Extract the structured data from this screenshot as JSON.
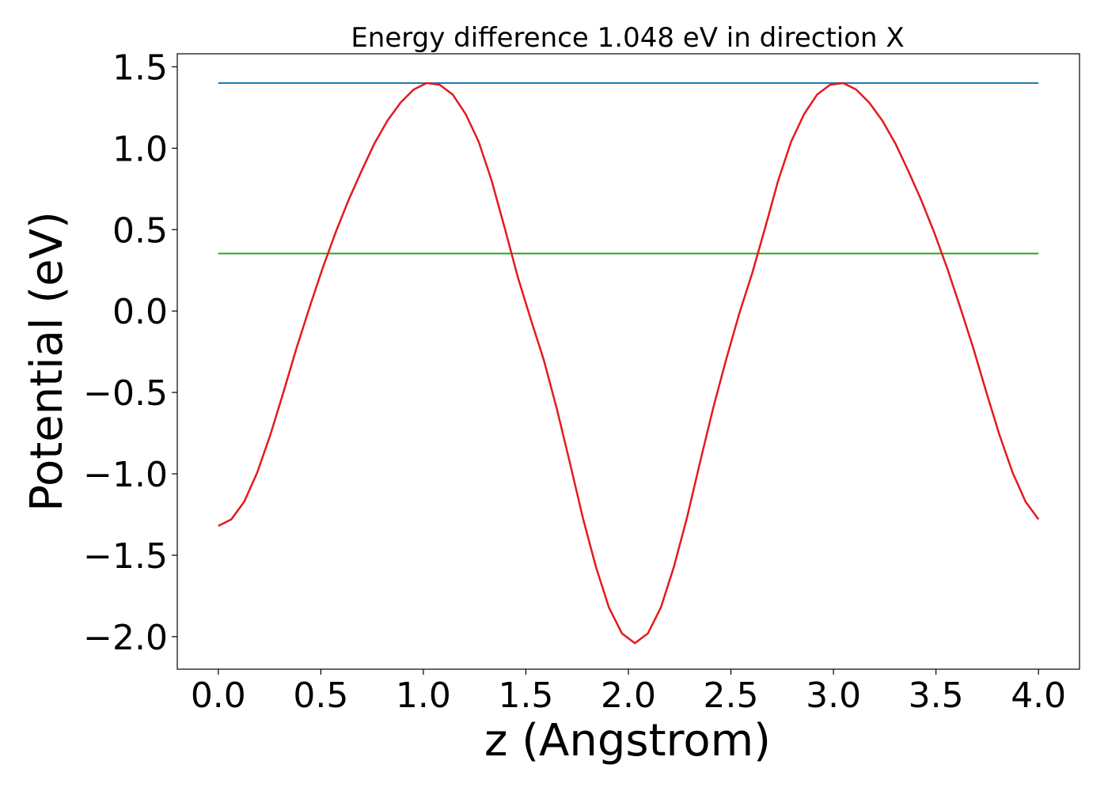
{
  "chart_data": {
    "type": "line",
    "title": "Energy difference 1.048 eV in direction X",
    "xlabel": "z (Angstrom)",
    "ylabel": "Potential (eV)",
    "xlim": [
      -0.2,
      4.2
    ],
    "ylim": [
      -2.2,
      1.58
    ],
    "xticks": [
      0.0,
      0.5,
      1.0,
      1.5,
      2.0,
      2.5,
      3.0,
      3.5,
      4.0
    ],
    "xtick_labels": [
      "0.0",
      "0.5",
      "1.0",
      "1.5",
      "2.0",
      "2.5",
      "3.0",
      "3.5",
      "4.0"
    ],
    "yticks": [
      -2.0,
      -1.5,
      -1.0,
      -0.5,
      0.0,
      0.5,
      1.0,
      1.5
    ],
    "ytick_labels": [
      "−2.0",
      "−1.5",
      "−1.0",
      "−0.5",
      "0.0",
      "0.5",
      "1.0",
      "1.5"
    ],
    "grid": false,
    "series": [
      {
        "color": "#1f77b4",
        "x": [
          0.0,
          4.0
        ],
        "y": [
          1.4,
          1.4
        ]
      },
      {
        "color": "#2ca02c",
        "x": [
          0.0,
          4.0
        ],
        "y": [
          0.353,
          0.353
        ]
      },
      {
        "color": "#e41a1c",
        "x": [
          0.0,
          0.0635,
          0.127,
          0.1905,
          0.254,
          0.3175,
          0.381,
          0.4445,
          0.508,
          0.5714,
          0.6349,
          0.6984,
          0.7619,
          0.8254,
          0.8889,
          0.9524,
          1.0159,
          1.0794,
          1.1429,
          1.2063,
          1.2698,
          1.3333,
          1.3968,
          1.4603,
          1.5238,
          1.5873,
          1.6508,
          1.7143,
          1.7778,
          1.8413,
          1.9048,
          1.9683,
          2.0317,
          2.0952,
          2.1587,
          2.2222,
          2.2857,
          2.3492,
          2.4127,
          2.4762,
          2.5397,
          2.6032,
          2.6667,
          2.7302,
          2.7937,
          2.8571,
          2.9206,
          2.9841,
          3.0476,
          3.1111,
          3.1746,
          3.2381,
          3.3016,
          3.3651,
          3.4286,
          3.4921,
          3.5556,
          3.619,
          3.6825,
          3.746,
          3.8095,
          3.873,
          3.9365,
          4.0
        ],
        "y": [
          -1.32,
          -1.28,
          -1.17,
          -0.99,
          -0.76,
          -0.5,
          -0.23,
          0.02,
          0.26,
          0.48,
          0.68,
          0.86,
          1.03,
          1.17,
          1.28,
          1.36,
          1.4,
          1.39,
          1.33,
          1.21,
          1.04,
          0.8,
          0.51,
          0.21,
          -0.05,
          -0.3,
          -0.6,
          -0.93,
          -1.27,
          -1.57,
          -1.82,
          -1.98,
          -2.04,
          -1.98,
          -1.82,
          -1.57,
          -1.27,
          -0.93,
          -0.6,
          -0.3,
          -0.02,
          0.23,
          0.51,
          0.8,
          1.04,
          1.21,
          1.33,
          1.39,
          1.4,
          1.36,
          1.28,
          1.17,
          1.03,
          0.86,
          0.68,
          0.48,
          0.26,
          0.02,
          -0.23,
          -0.5,
          -0.76,
          -0.99,
          -1.17,
          -1.28
        ]
      }
    ]
  }
}
